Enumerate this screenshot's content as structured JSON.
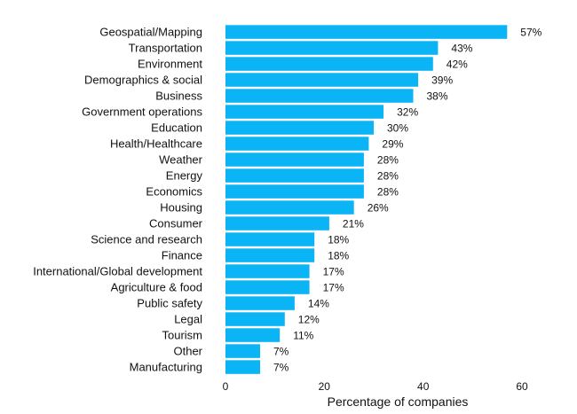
{
  "chart_data": {
    "type": "bar",
    "orientation": "horizontal",
    "categories": [
      "Geospatial/Mapping",
      "Transportation",
      "Environment",
      "Demographics & social",
      "Business",
      "Government operations",
      "Education",
      "Health/Healthcare",
      "Weather",
      "Energy",
      "Economics",
      "Housing",
      "Consumer",
      "Science and research",
      "Finance",
      "International/Global development",
      "Agriculture & food",
      "Public safety",
      "Legal",
      "Tourism",
      "Other",
      "Manufacturing"
    ],
    "values": [
      57,
      43,
      42,
      39,
      38,
      32,
      30,
      29,
      28,
      28,
      28,
      26,
      21,
      18,
      18,
      17,
      17,
      14,
      12,
      11,
      7,
      7
    ],
    "value_labels": [
      "57%",
      "43%",
      "42%",
      "39%",
      "38%",
      "32%",
      "30%",
      "29%",
      "28%",
      "28%",
      "28%",
      "26%",
      "21%",
      "18%",
      "18%",
      "17%",
      "17%",
      "14%",
      "12%",
      "11%",
      "7%",
      "7%"
    ],
    "title": "",
    "xlabel": "Percentage of companies",
    "ylabel": "",
    "xlim": [
      0,
      60
    ],
    "xticks": [
      "0",
      "20",
      "40",
      "60"
    ],
    "grid": false,
    "legend": "none",
    "bar_color": "#0ab4f5"
  }
}
